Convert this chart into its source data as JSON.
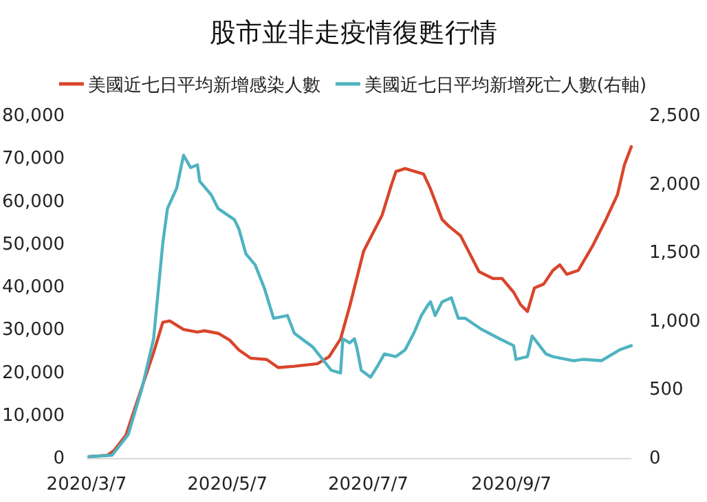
{
  "chart_data": {
    "type": "line",
    "title": "股市並非走疫情復甦行情",
    "legend": "top",
    "marker": "none",
    "line_style": "solid",
    "xlim": [
      "2020-03-07",
      "2020-10-29"
    ],
    "xticks": [
      {
        "value": "2020-03-07",
        "label": "2020/3/7"
      },
      {
        "value": "2020-05-07",
        "label": "2020/5/7"
      },
      {
        "value": "2020-07-07",
        "label": "2020/7/7"
      },
      {
        "value": "2020-09-07",
        "label": "2020/9/7"
      }
    ],
    "ylim": [
      0,
      80000
    ],
    "yticks": [
      0,
      {
        "value": 10000,
        "label": "10,000"
      },
      {
        "value": 20000,
        "label": "20,000"
      },
      {
        "value": 30000,
        "label": "30,000"
      },
      {
        "value": 40000,
        "label": "40,000"
      },
      {
        "value": 50000,
        "label": "50,000"
      },
      {
        "value": 60000,
        "label": "60,000"
      },
      {
        "value": 70000,
        "label": "70,000"
      },
      {
        "value": 80000,
        "label": "80,000"
      }
    ],
    "y2lim": [
      0,
      2500
    ],
    "y2ticks": [
      0,
      500,
      {
        "value": 1000,
        "label": "1,000"
      },
      {
        "value": 1500,
        "label": "1,500"
      },
      {
        "value": 2000,
        "label": "2,000"
      },
      {
        "value": 2500,
        "label": "2,500"
      }
    ],
    "series": [
      {
        "name": "美國近七日平均新增感染人數",
        "color": "#d9452b",
        "x": [
          "2020-03-08",
          "2020-03-16",
          "2020-03-19",
          "2020-03-24",
          "2020-03-30",
          "2020-04-05",
          "2020-04-09",
          "2020-04-12",
          "2020-04-18",
          "2020-04-24",
          "2020-04-27",
          "2020-05-03",
          "2020-05-08",
          "2020-05-12",
          "2020-05-17",
          "2020-05-24",
          "2020-05-29",
          "2020-06-05",
          "2020-06-15",
          "2020-06-20",
          "2020-06-25",
          "2020-06-29",
          "2020-07-05",
          "2020-07-13",
          "2020-07-17",
          "2020-07-19",
          "2020-07-23",
          "2020-07-31",
          "2020-08-03",
          "2020-08-08",
          "2020-08-11",
          "2020-08-16",
          "2020-08-24",
          "2020-08-30",
          "2020-09-03",
          "2020-09-08",
          "2020-09-11",
          "2020-09-14",
          "2020-09-17",
          "2020-09-21",
          "2020-09-25",
          "2020-09-28",
          "2020-10-01",
          "2020-10-06",
          "2020-10-12",
          "2020-10-18",
          "2020-10-23",
          "2020-10-26",
          "2020-10-29"
        ],
        "values": [
          0,
          300,
          1500,
          5000,
          14700,
          24300,
          31400,
          31700,
          29700,
          29100,
          29400,
          28800,
          27200,
          24900,
          23000,
          22700,
          20800,
          21100,
          21700,
          23300,
          27500,
          35200,
          48000,
          56400,
          63400,
          66600,
          67300,
          66000,
          62500,
          55400,
          53800,
          51600,
          43200,
          41600,
          41600,
          38400,
          35500,
          33900,
          39400,
          40300,
          43500,
          44800,
          42600,
          43500,
          49000,
          55400,
          61200,
          68200,
          72400
        ]
      },
      {
        "name": "美國近七日平均新增死亡人數(右軸)",
        "color": "#4fb3c1",
        "axis": "y2",
        "x": [
          "2020-03-08",
          "2020-03-18",
          "2020-03-25",
          "2020-03-31",
          "2020-04-05",
          "2020-04-09",
          "2020-04-11",
          "2020-04-15",
          "2020-04-18",
          "2020-04-21",
          "2020-04-24",
          "2020-04-25",
          "2020-04-30",
          "2020-05-03",
          "2020-05-10",
          "2020-05-12",
          "2020-05-15",
          "2020-05-19",
          "2020-05-23",
          "2020-05-27",
          "2020-06-02",
          "2020-06-05",
          "2020-06-13",
          "2020-06-21",
          "2020-06-25",
          "2020-06-26",
          "2020-06-29",
          "2020-07-01",
          "2020-07-02",
          "2020-07-04",
          "2020-07-08",
          "2020-07-11",
          "2020-07-14",
          "2020-07-19",
          "2020-07-23",
          "2020-07-27",
          "2020-07-30",
          "2020-08-02",
          "2020-08-03",
          "2020-08-05",
          "2020-08-08",
          "2020-08-12",
          "2020-08-15",
          "2020-08-18",
          "2020-08-25",
          "2020-09-02",
          "2020-09-08",
          "2020-09-09",
          "2020-09-14",
          "2020-09-16",
          "2020-09-22",
          "2020-09-25",
          "2020-10-04",
          "2020-10-08",
          "2020-10-16",
          "2020-10-19",
          "2020-10-24",
          "2020-10-29"
        ],
        "values": [
          0,
          10,
          160,
          500,
          860,
          1560,
          1810,
          1960,
          2200,
          2110,
          2130,
          2010,
          1910,
          1810,
          1730,
          1660,
          1480,
          1400,
          1230,
          1010,
          1030,
          900,
          800,
          630,
          610,
          860,
          830,
          860,
          800,
          630,
          580,
          660,
          750,
          730,
          780,
          910,
          1030,
          1110,
          1130,
          1030,
          1130,
          1160,
          1010,
          1010,
          930,
          860,
          810,
          710,
          730,
          880,
          750,
          730,
          700,
          710,
          700,
          730,
          780,
          810
        ]
      }
    ]
  }
}
